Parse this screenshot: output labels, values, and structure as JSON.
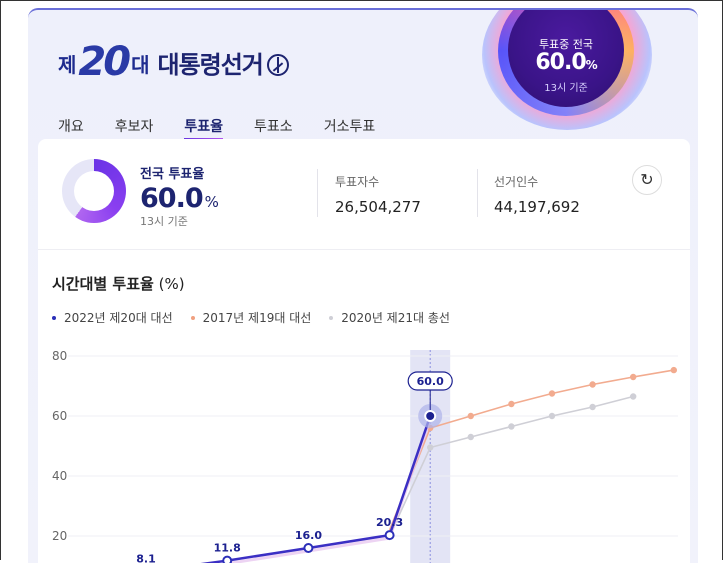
{
  "header": {
    "logo_prefix": "제",
    "logo_number": "20",
    "logo_suffix": "대",
    "title": "대통령선거"
  },
  "badge": {
    "label": "투표중 전국",
    "value": "60.0",
    "unit": "%",
    "time": "13시 기준"
  },
  "tabs": [
    {
      "label": "개요"
    },
    {
      "label": "후보자"
    },
    {
      "label": "투표율",
      "active": true
    },
    {
      "label": "투표소"
    },
    {
      "label": "거소투표"
    }
  ],
  "summary": {
    "national_label": "전국 투표율",
    "national_value": "60.0",
    "national_unit": "%",
    "national_time": "13시 기준",
    "national_fraction": 0.6,
    "voters_label": "투표자수",
    "voters_value": "26,504,277",
    "electorate_label": "선거인수",
    "electorate_value": "44,197,692",
    "refresh_icon": "refresh-icon"
  },
  "chart_title": "시간대별 투표율",
  "chart_unit": "(%)",
  "legend": [
    {
      "label": "2022년 제20대 대선",
      "color": "#2b2fb8"
    },
    {
      "label": "2017년 제19대 대선",
      "color": "#f0a080"
    },
    {
      "label": "2020년 제21대 총선",
      "color": "#cfcfd6"
    }
  ],
  "chart_data": {
    "type": "line",
    "y_ticks": [
      "80",
      "60",
      "40",
      "20"
    ],
    "ylim": [
      20,
      80
    ],
    "grid": true,
    "legend_position": "top-left",
    "highlight_slot": 12,
    "series": [
      {
        "name": "2022년 제20대 대선",
        "color": "#3b2fc4",
        "points": [
          [
            5,
            8.1
          ],
          [
            7,
            11.8
          ],
          [
            9,
            16.0
          ],
          [
            11,
            20.3
          ],
          [
            12,
            60.0
          ]
        ],
        "labels": [
          "8.1",
          "11.8",
          "16.0",
          "20.3",
          "60.0"
        ]
      },
      {
        "name": "2017년 제19대 대선",
        "color": "#f2ab8f",
        "points": [
          [
            11,
            22.0
          ],
          [
            12,
            56.0
          ],
          [
            13,
            60.0
          ],
          [
            14,
            64.0
          ],
          [
            15,
            67.5
          ],
          [
            16,
            70.5
          ],
          [
            17,
            73.0
          ],
          [
            18,
            75.3
          ]
        ]
      },
      {
        "name": "2020년 제21대 총선",
        "color": "#cfcfd6",
        "points": [
          [
            11,
            20.0
          ],
          [
            12,
            49.5
          ],
          [
            13,
            53.0
          ],
          [
            14,
            56.5
          ],
          [
            15,
            60.0
          ],
          [
            16,
            63.0
          ],
          [
            17,
            66.5
          ]
        ]
      }
    ]
  }
}
